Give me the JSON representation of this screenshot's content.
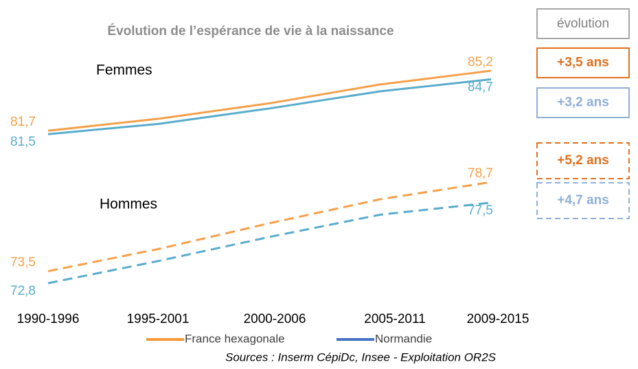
{
  "chart_data": {
    "type": "line",
    "title": "Évolution de l’espérance de vie à la naissance",
    "change_header": "évolution",
    "categories": [
      "1990-1996",
      "1995-2001",
      "2000-2006",
      "2005-2011",
      "2009-2015"
    ],
    "ylim": [
      71,
      86
    ],
    "groups": [
      {
        "label": "Femmes",
        "dashed": false,
        "series": [
          {
            "color": "#f5a04a",
            "values": [
              81.7,
              82.4,
              83.3,
              84.4,
              85.2
            ],
            "value_labels": [
              "81,7",
              null,
              null,
              null,
              "85,2"
            ]
          },
          {
            "color": "#5aaccc",
            "values": [
              81.5,
              82.1,
              83.0,
              84.0,
              84.7
            ],
            "value_labels": [
              "81,5",
              null,
              null,
              null,
              "84,7"
            ]
          }
        ],
        "changes": [
          {
            "label": "+3,5 ans",
            "color": "#e07020"
          },
          {
            "label": "+3,2 ans",
            "color": "#8fb0d6"
          }
        ]
      },
      {
        "label": "Hommes",
        "dashed": true,
        "series": [
          {
            "color": "#f5a04a",
            "values": [
              73.5,
              74.8,
              76.3,
              77.7,
              78.7
            ],
            "value_labels": [
              "73,5",
              null,
              null,
              null,
              "78,7"
            ]
          },
          {
            "color": "#5aaccc",
            "values": [
              72.8,
              74.1,
              75.5,
              76.8,
              77.5
            ],
            "value_labels": [
              "72,8",
              null,
              null,
              null,
              "77,5"
            ]
          }
        ],
        "changes": [
          {
            "label": "+5,2 ans",
            "color": "#e07020"
          },
          {
            "label": "+4,7 ans",
            "color": "#8fb0d6"
          }
        ]
      }
    ],
    "legend": [
      {
        "name": "France hexagonale",
        "color": "#f5983a"
      },
      {
        "name": "Normandie",
        "color": "#4472c4"
      }
    ],
    "source": "Sources : Inserm CépiDc, Insee  -  Exploitation OR2S"
  }
}
